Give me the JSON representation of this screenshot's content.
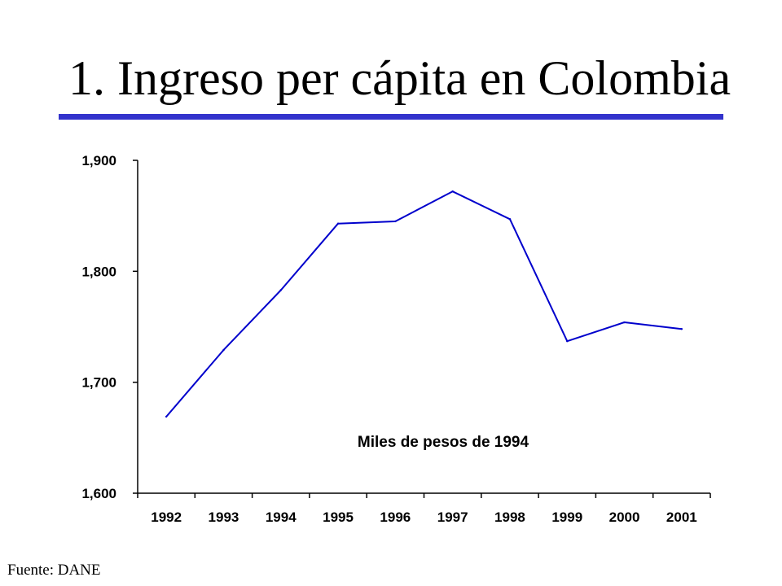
{
  "slide": {
    "title": "1. Ingreso per cápita en Colombia",
    "source": "Fuente: DANE",
    "accent_color": "#3333cc"
  },
  "chart_data": {
    "type": "line",
    "categories": [
      "1992",
      "1993",
      "1994",
      "1995",
      "1996",
      "1997",
      "1998",
      "1999",
      "2000",
      "2001"
    ],
    "series": [
      {
        "values": [
          1669,
          1729,
          1783,
          1843,
          1845,
          1872,
          1847,
          1737,
          1754,
          1748
        ],
        "color": "#0000cc"
      }
    ],
    "ylim": [
      1600,
      1900
    ],
    "yticks": [
      1600,
      1700,
      1800,
      1900
    ],
    "ytick_labels": [
      "1,600",
      "1,700",
      "1,800",
      "1,900"
    ],
    "annotation": "Miles de pesos  de 1994",
    "grid": false,
    "legend": "none",
    "title": "",
    "xlabel": "",
    "ylabel": ""
  }
}
